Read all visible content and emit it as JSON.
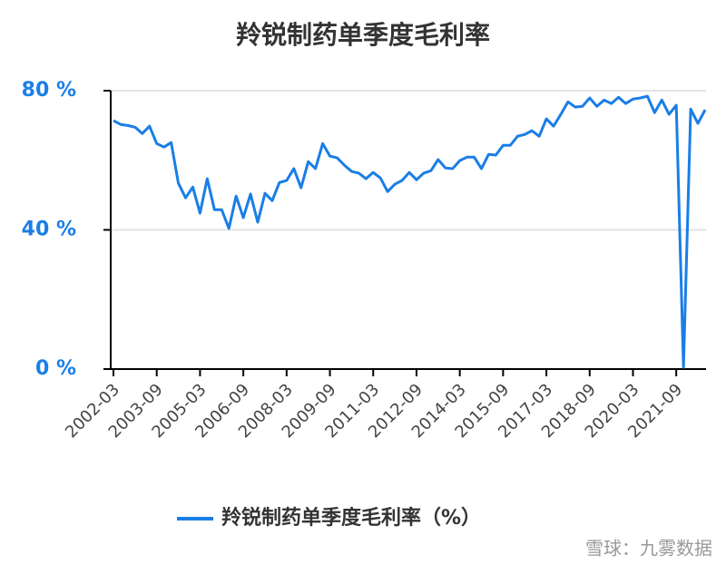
{
  "chart_data": {
    "type": "line",
    "title": "羚锐制药单季度毛利率",
    "categories": [
      "2002-03",
      null,
      null,
      null,
      null,
      null,
      "2003-09",
      null,
      null,
      null,
      null,
      null,
      "2005-03",
      null,
      null,
      null,
      null,
      null,
      "2006-09",
      null,
      null,
      null,
      null,
      null,
      "2008-03",
      null,
      null,
      null,
      null,
      null,
      "2009-09",
      null,
      null,
      null,
      null,
      null,
      "2011-03",
      null,
      null,
      null,
      null,
      null,
      "2012-09",
      null,
      null,
      null,
      null,
      null,
      "2014-03",
      null,
      null,
      null,
      null,
      null,
      "2015-09",
      null,
      null,
      null,
      null,
      null,
      "2017-03",
      null,
      null,
      null,
      null,
      null,
      "2018-09",
      null,
      null,
      null,
      null,
      null,
      "2020-03",
      null,
      null,
      null,
      null,
      null,
      "2021-09",
      null,
      null,
      null,
      null
    ],
    "series": [
      {
        "name": "羚锐制药单季度毛利率（%）",
        "color": "#1a7ee6",
        "values": [
          71.4,
          70.3,
          70,
          69.5,
          67.7,
          69.8,
          64.8,
          63.8,
          65.1,
          53.4,
          49.2,
          52.3,
          44.8,
          54.7,
          45.8,
          45.8,
          40.4,
          49.7,
          43.5,
          50.3,
          42.2,
          50.5,
          48.4,
          53.6,
          54.2,
          57.6,
          52.1,
          59.6,
          57.6,
          64.8,
          61.2,
          60.7,
          58.6,
          56.8,
          56.3,
          54.7,
          56.5,
          54.9,
          51,
          53.1,
          54.2,
          56.5,
          54.4,
          56.3,
          57,
          60.2,
          57.8,
          57.6,
          59.9,
          60.9,
          60.9,
          57.6,
          61.7,
          61.5,
          64.3,
          64.3,
          66.9,
          67.4,
          68.5,
          66.9,
          71.9,
          69.8,
          73.2,
          76.8,
          75.3,
          75.5,
          77.9,
          75.5,
          77.3,
          76.3,
          78.1,
          76.3,
          77.6,
          77.9,
          78.4,
          73.7,
          77.3,
          73.2,
          75.8,
          0.5,
          74.7,
          70.6,
          74.5
        ]
      }
    ],
    "ylim": [
      0,
      80
    ],
    "yticks": [
      {
        "value": 0,
        "label": "0 %"
      },
      {
        "value": 40,
        "label": "40 %"
      },
      {
        "value": 80,
        "label": "80 %"
      }
    ],
    "grid": true,
    "watermark": "雪球：九雾数据"
  }
}
